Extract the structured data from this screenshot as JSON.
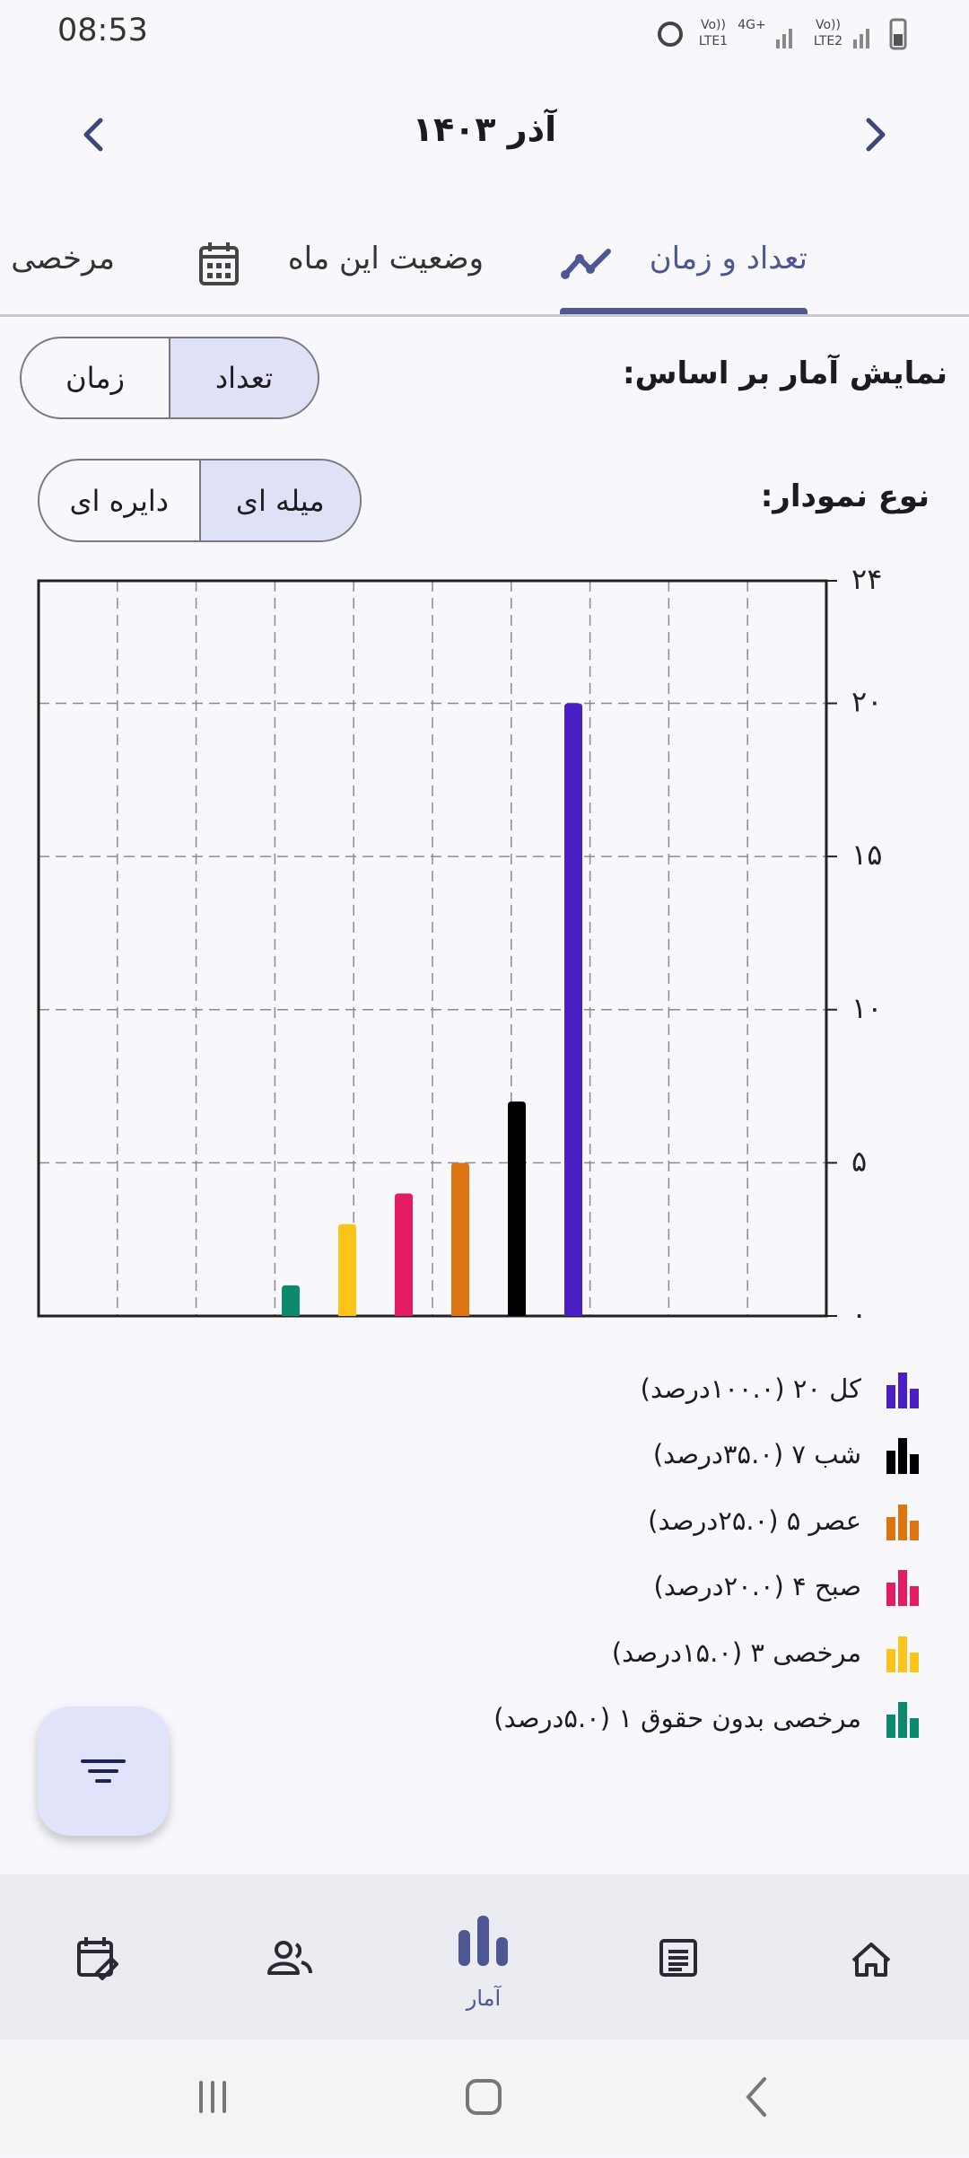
{
  "status_bar": {
    "time": "08:53",
    "sim1_top": "Vo))",
    "sim1_bottom": "LTE1",
    "net": "4G+",
    "sim2_top": "Vo))",
    "sim2_bottom": "LTE2"
  },
  "header": {
    "title": "آذر ۱۴۰۳"
  },
  "tabs": [
    "تعداد و زمان",
    "وضعیت این ماه",
    "مرخصی"
  ],
  "basis": {
    "label": "نمایش آمار بر اساس:",
    "options": [
      "تعداد",
      "زمان"
    ]
  },
  "chart_type": {
    "label": "نوع نمودار:",
    "options": [
      "میله ای",
      "دایره ای"
    ]
  },
  "chart_data": {
    "type": "bar",
    "categories": [
      null,
      null,
      null,
      null,
      null,
      null
    ],
    "values": [
      1,
      3,
      4,
      5,
      7,
      20
    ],
    "colors": [
      "#0b8a6f",
      "#fcc419",
      "#e31c63",
      "#dc7412",
      "#000000",
      "#4a1fc6"
    ],
    "ylim": [
      0,
      24
    ],
    "yticks": [
      {
        "value": 0,
        "label": "۰"
      },
      {
        "value": 5,
        "label": "۵"
      },
      {
        "value": 10,
        "label": "۱۰"
      },
      {
        "value": 15,
        "label": "۱۵"
      },
      {
        "value": 20,
        "label": "۲۰"
      },
      {
        "value": 24,
        "label": "۲۴"
      }
    ],
    "grid": true,
    "legend": [
      {
        "label": "کل ۲۰ (۱۰۰.۰درصد)",
        "color": "#4a1fc6"
      },
      {
        "label": "شب ۷ (۳۵.۰درصد)",
        "color": "#000000"
      },
      {
        "label": "عصر ۵ (۲۵.۰درصد)",
        "color": "#dc7412"
      },
      {
        "label": "صبح ۴ (۲۰.۰درصد)",
        "color": "#e31c63"
      },
      {
        "label": "مرخصی ۳ (۱۵.۰درصد)",
        "color": "#fcc419"
      },
      {
        "label": "مرخصی بدون حقوق ۱ (۵.۰درصد)",
        "color": "#0b8a6f"
      }
    ]
  },
  "bottom_nav": {
    "active_label": "آمار"
  }
}
